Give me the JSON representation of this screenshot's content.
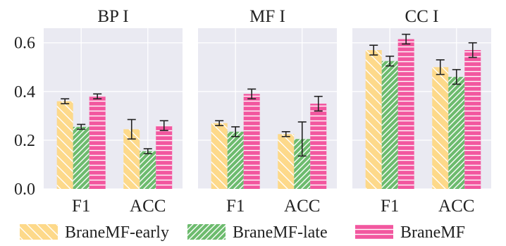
{
  "chart_data": [
    {
      "type": "bar",
      "title": "BP I",
      "categories": [
        "F1",
        "ACC"
      ],
      "ylim": [
        0,
        0.66
      ],
      "yticks": [
        "0.0",
        "0.2",
        "0.4",
        "0.6"
      ],
      "series": [
        {
          "name": "BraneMF-early",
          "values": [
            0.36,
            0.245
          ],
          "errors": [
            0.01,
            0.04
          ]
        },
        {
          "name": "BraneMF-late",
          "values": [
            0.255,
            0.155
          ],
          "errors": [
            0.01,
            0.01
          ]
        },
        {
          "name": "BraneMF",
          "values": [
            0.38,
            0.26
          ],
          "errors": [
            0.01,
            0.02
          ]
        }
      ]
    },
    {
      "type": "bar",
      "title": "MF I",
      "categories": [
        "F1",
        "ACC"
      ],
      "ylim": [
        0,
        0.66
      ],
      "series": [
        {
          "name": "BraneMF-early",
          "values": [
            0.27,
            0.225
          ],
          "errors": [
            0.01,
            0.01
          ]
        },
        {
          "name": "BraneMF-late",
          "values": [
            0.235,
            0.205
          ],
          "errors": [
            0.02,
            0.07
          ]
        },
        {
          "name": "BraneMF",
          "values": [
            0.39,
            0.35
          ],
          "errors": [
            0.02,
            0.03
          ]
        }
      ]
    },
    {
      "type": "bar",
      "title": "CC I",
      "categories": [
        "F1",
        "ACC"
      ],
      "ylim": [
        0,
        0.66
      ],
      "series": [
        {
          "name": "BraneMF-early",
          "values": [
            0.57,
            0.5
          ],
          "errors": [
            0.02,
            0.03
          ]
        },
        {
          "name": "BraneMF-late",
          "values": [
            0.525,
            0.46
          ],
          "errors": [
            0.02,
            0.03
          ]
        },
        {
          "name": "BraneMF",
          "values": [
            0.615,
            0.57
          ],
          "errors": [
            0.02,
            0.03
          ]
        }
      ]
    }
  ],
  "legend": {
    "items": [
      "BraneMF-early",
      "BraneMF-late",
      "BraneMF"
    ],
    "placement": "bottom"
  },
  "colors": {
    "background": "#eaeaf2",
    "grid": "#ffffff",
    "BraneMF-early": "#fdd98a",
    "BraneMF-late": "#6dbb6e",
    "BraneMF": "#f2579f",
    "error_bar": "#222222"
  },
  "grid": true,
  "hatches": {
    "BraneMF-early": "backslash",
    "BraneMF-late": "slash",
    "BraneMF": "horizontal"
  }
}
